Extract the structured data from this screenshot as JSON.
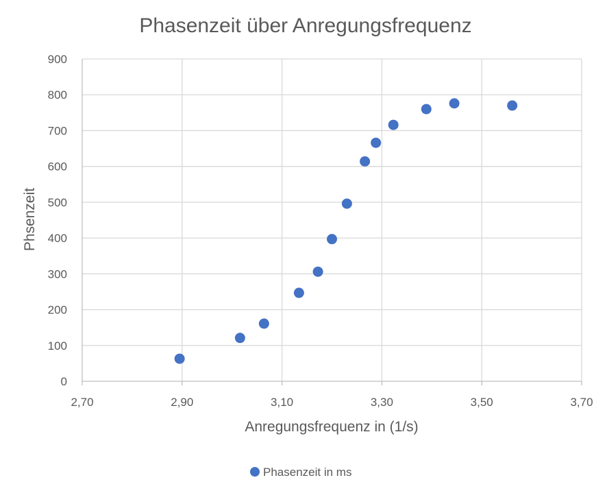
{
  "chart_data": {
    "type": "scatter",
    "title": "Phasenzeit über Anregungsfrequenz",
    "xlabel": "Anregungsfrequenz in (1/s)",
    "ylabel": "Phsenzeit",
    "xlim": [
      2.7,
      3.7
    ],
    "ylim": [
      0,
      900
    ],
    "x_ticks": [
      "2,70",
      "2,90",
      "3,10",
      "3,30",
      "3,50",
      "3,70"
    ],
    "y_ticks": [
      "0",
      "100",
      "200",
      "300",
      "400",
      "500",
      "600",
      "700",
      "800",
      "900"
    ],
    "grid": true,
    "legend_position": "bottom",
    "series": [
      {
        "name": "Phasenzeit in ms",
        "color": "#4472c4",
        "points": [
          {
            "x": 2.895,
            "y": 63
          },
          {
            "x": 3.016,
            "y": 121
          },
          {
            "x": 3.064,
            "y": 161
          },
          {
            "x": 3.134,
            "y": 247
          },
          {
            "x": 3.172,
            "y": 306
          },
          {
            "x": 3.2,
            "y": 397
          },
          {
            "x": 3.23,
            "y": 496
          },
          {
            "x": 3.266,
            "y": 614
          },
          {
            "x": 3.288,
            "y": 666
          },
          {
            "x": 3.323,
            "y": 716
          },
          {
            "x": 3.389,
            "y": 760
          },
          {
            "x": 3.445,
            "y": 776
          },
          {
            "x": 3.561,
            "y": 770
          }
        ]
      }
    ]
  }
}
